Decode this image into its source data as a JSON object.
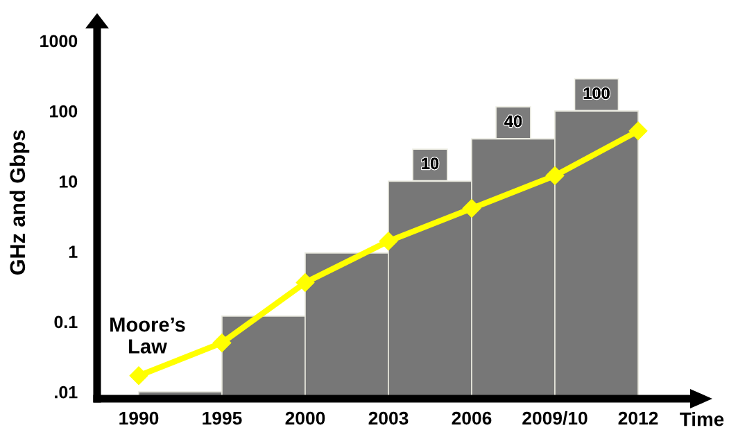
{
  "chart_data": {
    "type": "bar",
    "ylabel": "GHz and Gbps",
    "xlabel": "Time",
    "categories": [
      "1990",
      "1995",
      "2000",
      "2003",
      "2006",
      "2009/10",
      "2012"
    ],
    "log": true,
    "ylim": [
      0.008,
      1500
    ],
    "yticks": [
      {
        "value": 0.01,
        "label": ".01"
      },
      0.1,
      1,
      10,
      100,
      1000
    ],
    "series": [
      {
        "color": "#777777",
        "values": [
          0.01,
          0.12,
          0.95,
          10,
          40,
          100,
          null
        ],
        "value_labels": [
          null,
          null,
          null,
          "10",
          "40",
          "100",
          null
        ]
      },
      {
        "type": "line",
        "name": "Moore’s Law",
        "color": "#ffff00",
        "marker": "diamond",
        "values": [
          0.017,
          0.05,
          0.36,
          1.4,
          4.1,
          12,
          52
        ]
      }
    ]
  }
}
